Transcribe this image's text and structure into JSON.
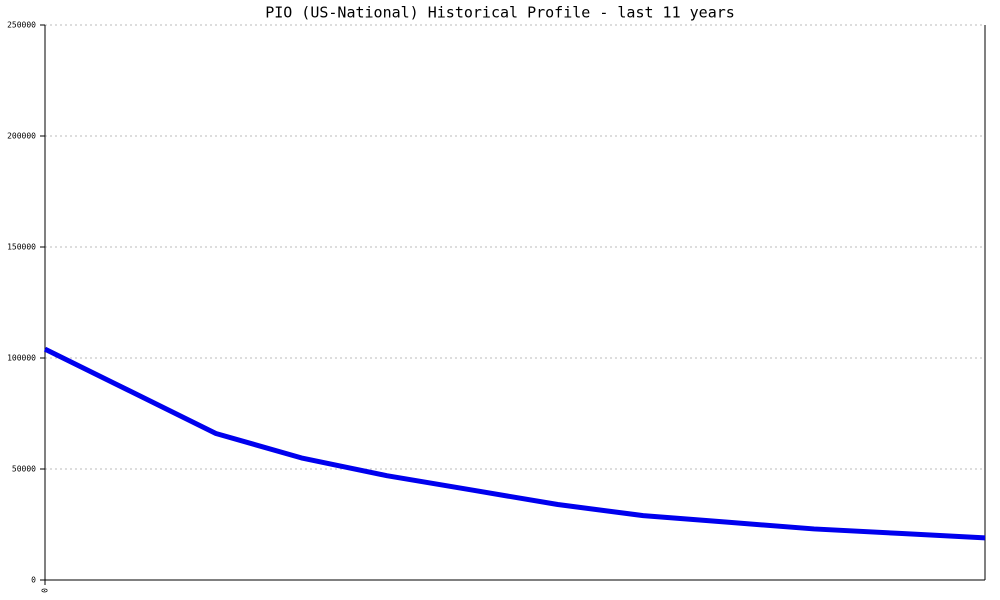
{
  "chart_data": {
    "type": "line",
    "title": "PIO (US-National) Historical Profile - last 11 years",
    "x": [
      0,
      1,
      2,
      3,
      4,
      5,
      6,
      7,
      8,
      9,
      10,
      11
    ],
    "series": [
      {
        "color": "#0000ee",
        "values": [
          104000,
          85000,
          66000,
          55000,
          47000,
          40500,
          34000,
          29000,
          26000,
          23000,
          21000,
          19000
        ]
      }
    ],
    "xlim": [
      0,
      11
    ],
    "xticks": [
      0
    ],
    "ylim": [
      0,
      250000
    ],
    "yticks": [
      0,
      50000,
      100000,
      150000,
      200000,
      250000
    ],
    "grid": true
  }
}
